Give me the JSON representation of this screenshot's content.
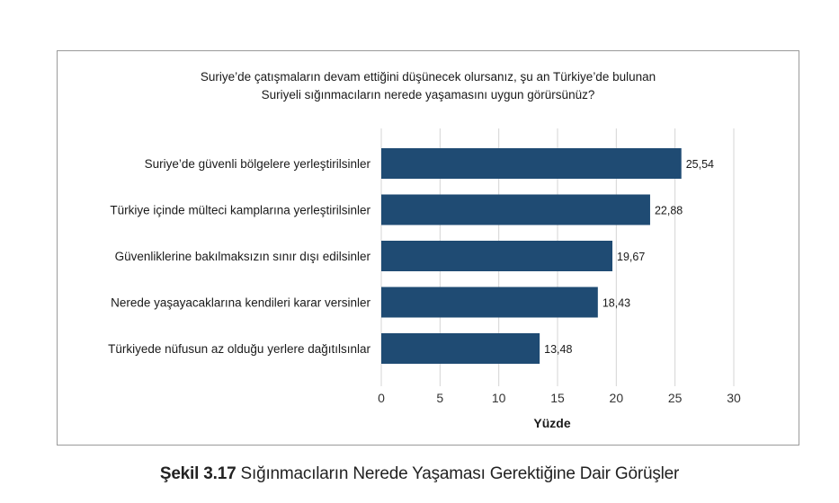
{
  "chart_data": {
    "type": "bar",
    "orientation": "horizontal",
    "title_line1": "Suriye’de çatışmaların devam ettiğini düşünecek olursanız, şu an Türkiye’de bulunan",
    "title_line2": "Suriyeli sığınmacıların nerede yaşamasını uygun görürsünüz?",
    "categories": [
      "Suriye’de güvenli bölgelere yerleştirilsinler",
      "Türkiye içinde mülteci kamplarına yerleştirilsinler",
      "Güvenliklerine bakılmaksızın sınır dışı edilsinler",
      "Nerede yaşayacaklarına kendileri karar versinler",
      "Türkiyede nüfusun az olduğu yerlere dağıtılsınlar"
    ],
    "values": [
      25.54,
      22.88,
      19.67,
      18.43,
      13.48
    ],
    "value_labels": [
      "25,54",
      "22,88",
      "19,67",
      "18,43",
      "13,48"
    ],
    "xlabel": "Yüzde",
    "xlim": [
      0,
      30
    ],
    "xticks": [
      0,
      5,
      10,
      15,
      20,
      25,
      30
    ],
    "grid": "vertical",
    "bar_color": "#1f4b73",
    "grid_color": "#d4d4d4"
  },
  "caption": {
    "label": "Şekil 3.17",
    "text": " Sığınmacıların Nerede Yaşaması Gerektiğine Dair Görüşler"
  }
}
